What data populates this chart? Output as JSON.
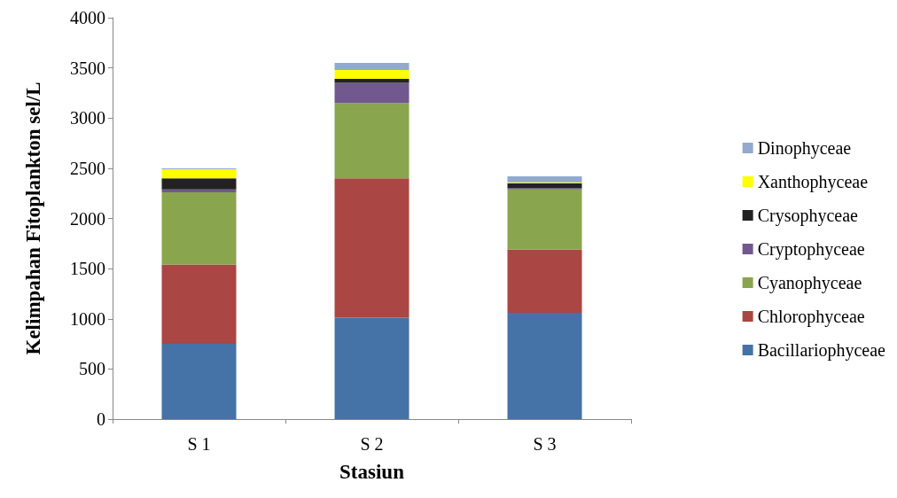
{
  "chart_data": {
    "type": "bar",
    "stacked": true,
    "xlabel": "Stasiun",
    "ylabel": "Kelimpahan Fitoplankton sel/L",
    "categories": [
      "S 1",
      "S 2",
      "S 3"
    ],
    "ylim": [
      0,
      4000
    ],
    "yticks": [
      0,
      500,
      1000,
      1500,
      2000,
      2500,
      3000,
      3500,
      4000
    ],
    "grid": false,
    "legend": "right",
    "series": [
      {
        "name": "Bacillariophyceae",
        "color": "#4572a7",
        "values": [
          750,
          1010,
          1060
        ]
      },
      {
        "name": "Chlorophyceae",
        "color": "#aa4643",
        "values": [
          790,
          1390,
          630
        ]
      },
      {
        "name": "Cyanophyceae",
        "color": "#89a54e",
        "values": [
          720,
          750,
          600
        ]
      },
      {
        "name": "Cryptophyceae",
        "color": "#71588f",
        "values": [
          30,
          200,
          10
        ]
      },
      {
        "name": "Crysophyceae",
        "color": "#222222",
        "values": [
          110,
          40,
          50
        ]
      },
      {
        "name": "Xanthophyceae",
        "color": "#ffff00",
        "values": [
          90,
          90,
          10
        ]
      },
      {
        "name": "Dinophyceae",
        "color": "#93a9cf",
        "values": [
          10,
          70,
          60
        ]
      }
    ]
  }
}
